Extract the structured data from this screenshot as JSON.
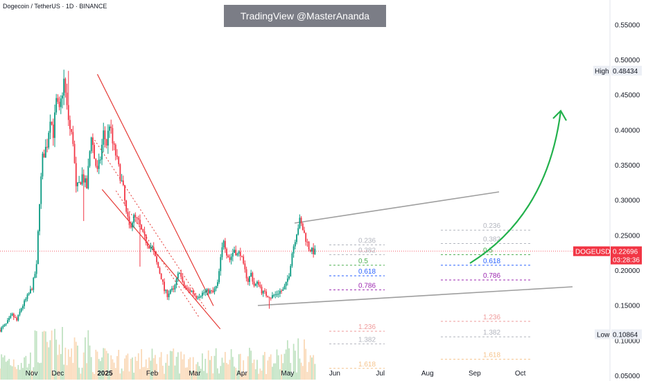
{
  "header": {
    "symbol_title": "Dogecoin / TetherUS · 1D · BINANCE",
    "watermark": "TradingView @MasterAnanda"
  },
  "chart_data": {
    "type": "candlestick",
    "symbol": "DOGEUSDT",
    "ylim": [
      0.042,
      0.585
    ],
    "y_ticks": [
      "0.55000",
      "0.50000",
      "0.45000",
      "0.40000",
      "0.35000",
      "0.30000",
      "0.25000",
      "0.20000",
      "0.15000",
      "0.10000",
      "0.05000"
    ],
    "y_tick_values": [
      0.55,
      0.5,
      0.45,
      0.4,
      0.35,
      0.3,
      0.25,
      0.2,
      0.15,
      0.1,
      0.05
    ],
    "x_ticks": [
      "Nov",
      "Dec",
      "2025",
      "Feb",
      "Mar",
      "Apr",
      "May",
      "Jun",
      "Jul",
      "Aug",
      "Sep",
      "Oct"
    ],
    "x_tick_day": [
      8,
      38,
      69,
      100,
      128,
      159,
      189,
      220,
      250,
      281,
      312,
      342
    ],
    "bold_tick": "2025",
    "last_price": {
      "value": 0.22696,
      "label": "0.22696",
      "countdown": "03:28:36",
      "name": "DOGEUSDT"
    },
    "high": {
      "label": "High",
      "value": 0.48434,
      "text": "0.48434"
    },
    "low": {
      "label": "Low",
      "value": 0.10864,
      "text": "0.10864"
    },
    "price_path": [
      [
        0,
        0.115
      ],
      [
        4,
        0.123
      ],
      [
        8,
        0.136
      ],
      [
        11,
        0.128
      ],
      [
        14,
        0.146
      ],
      [
        18,
        0.162
      ],
      [
        21,
        0.175
      ],
      [
        24,
        0.205
      ],
      [
        26,
        0.3
      ],
      [
        28,
        0.36
      ],
      [
        31,
        0.38
      ],
      [
        33,
        0.42
      ],
      [
        35,
        0.395
      ],
      [
        37,
        0.44
      ],
      [
        39,
        0.425
      ],
      [
        42,
        0.47
      ],
      [
        44,
        0.43
      ],
      [
        46,
        0.4
      ],
      [
        48,
        0.385
      ],
      [
        50,
        0.315
      ],
      [
        52,
        0.322
      ],
      [
        54,
        0.335
      ],
      [
        57,
        0.318
      ],
      [
        60,
        0.395
      ],
      [
        62,
        0.36
      ],
      [
        64,
        0.34
      ],
      [
        66,
        0.36
      ],
      [
        68,
        0.395
      ],
      [
        70,
        0.38
      ],
      [
        72,
        0.41
      ],
      [
        74,
        0.38
      ],
      [
        76,
        0.365
      ],
      [
        78,
        0.345
      ],
      [
        81,
        0.315
      ],
      [
        83,
        0.28
      ],
      [
        85,
        0.262
      ],
      [
        88,
        0.275
      ],
      [
        91,
        0.268
      ],
      [
        94,
        0.25
      ],
      [
        97,
        0.238
      ],
      [
        100,
        0.231
      ],
      [
        103,
        0.21
      ],
      [
        106,
        0.19
      ],
      [
        108,
        0.171
      ],
      [
        110,
        0.165
      ],
      [
        112,
        0.172
      ],
      [
        114,
        0.17
      ],
      [
        116,
        0.185
      ],
      [
        118,
        0.2
      ],
      [
        120,
        0.18
      ],
      [
        123,
        0.172
      ],
      [
        126,
        0.17
      ],
      [
        129,
        0.162
      ],
      [
        131,
        0.165
      ],
      [
        134,
        0.168
      ],
      [
        137,
        0.17
      ],
      [
        140,
        0.168
      ],
      [
        143,
        0.18
      ],
      [
        145,
        0.215
      ],
      [
        147,
        0.245
      ],
      [
        149,
        0.225
      ],
      [
        151,
        0.215
      ],
      [
        154,
        0.23
      ],
      [
        156,
        0.222
      ],
      [
        158,
        0.225
      ],
      [
        160,
        0.205
      ],
      [
        163,
        0.185
      ],
      [
        165,
        0.195
      ],
      [
        167,
        0.178
      ],
      [
        170,
        0.182
      ],
      [
        172,
        0.17
      ],
      [
        175,
        0.165
      ],
      [
        178,
        0.162
      ],
      [
        181,
        0.165
      ],
      [
        184,
        0.17
      ],
      [
        186,
        0.171
      ],
      [
        188,
        0.18
      ],
      [
        190,
        0.195
      ],
      [
        192,
        0.225
      ],
      [
        195,
        0.255
      ],
      [
        197,
        0.27
      ],
      [
        199,
        0.258
      ],
      [
        201,
        0.245
      ],
      [
        203,
        0.232
      ],
      [
        205,
        0.227
      ],
      [
        207,
        0.226
      ]
    ],
    "annotations": {
      "descending_channel": {
        "upper": [
          [
            64,
            0.42
          ],
          [
            133,
            0.155
          ]
        ],
        "lower": [
          [
            58,
            0.315
          ],
          [
            132,
            0.126
          ]
        ]
      },
      "ascending_resistance": [
        [
          152,
          0.254
        ],
        [
          212,
          0.302
        ]
      ],
      "ascending_support": [
        [
          132,
          0.134
        ],
        [
          260,
          0.157
        ]
      ],
      "projection_arrow": {
        "from": [
          197,
          0.192
        ],
        "to": [
          240,
          0.4
        ]
      },
      "fib_left": [
        {
          "label": "0.236",
          "value": 0.236,
          "color": "#b2b5be"
        },
        {
          "label": "0.382",
          "value": 0.222,
          "color": "#b2b5be"
        },
        {
          "label": "0.5",
          "value": 0.207,
          "color": "#4caf50"
        },
        {
          "label": "0.618",
          "value": 0.192,
          "color": "#2962ff"
        },
        {
          "label": "0.786",
          "value": 0.172,
          "color": "#9c27b0"
        },
        {
          "label": "1.236",
          "value": 0.113,
          "color": "#ef9a9a"
        },
        {
          "label": "1.382",
          "value": 0.095,
          "color": "#b2b5be"
        },
        {
          "label": "1.618",
          "value": 0.06,
          "color": "#f6c38b"
        }
      ],
      "fib_right": [
        {
          "label": "0.236",
          "value": 0.257,
          "color": "#b2b5be"
        },
        {
          "label": "0.382",
          "value": 0.238,
          "color": "#b2b5be"
        },
        {
          "label": "0.5",
          "value": 0.222,
          "color": "#4caf50"
        },
        {
          "label": "0.618",
          "value": 0.207,
          "color": "#2962ff"
        },
        {
          "label": "0.786",
          "value": 0.186,
          "color": "#9c27b0"
        },
        {
          "label": "1.236",
          "value": 0.127,
          "color": "#ef9a9a"
        },
        {
          "label": "1.382",
          "value": 0.105,
          "color": "#b2b5be"
        },
        {
          "label": "1.618",
          "value": 0.073,
          "color": "#f6c38b"
        }
      ]
    },
    "colors": {
      "up": "#089981",
      "down": "#f23645",
      "arrow": "#22b14c",
      "channel": "#e53935",
      "trendline": "#9e9e9e",
      "price_tag": "#f23645"
    }
  }
}
